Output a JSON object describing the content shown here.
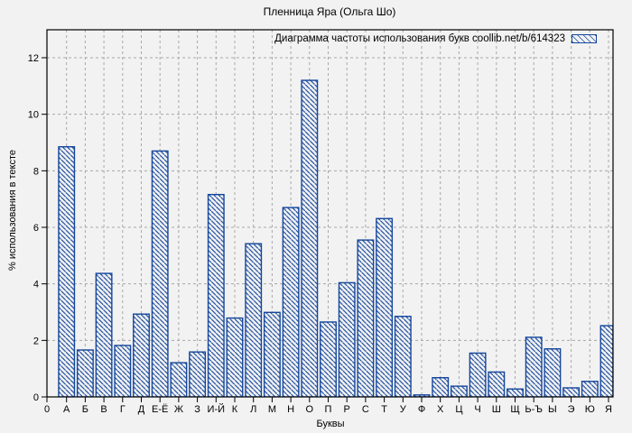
{
  "colors": {
    "background": "#f2f2f2",
    "bar": "#14469c",
    "grid": "#a8a8a8",
    "frame": "#000000",
    "text": "#000000"
  },
  "chart_data": {
    "type": "bar",
    "title": "Пленница Яра (Ольга Шо)",
    "legend": "Диаграмма частоты использования букв coollib.net/b/614323",
    "legend_position": "top-right",
    "xlabel": "Буквы",
    "ylabel": "% использования в тексте",
    "ylim": [
      0,
      13
    ],
    "yticks": [
      0,
      2,
      4,
      6,
      8,
      10,
      12
    ],
    "x_origin_label": "0",
    "grid": true,
    "bar_style": "blue outline with backslash diagonal hatch",
    "categories": [
      "А",
      "Б",
      "В",
      "Г",
      "Д",
      "Е-Ё",
      "Ж",
      "З",
      "И-Й",
      "К",
      "Л",
      "М",
      "Н",
      "О",
      "П",
      "Р",
      "С",
      "Т",
      "У",
      "Ф",
      "Х",
      "Ц",
      "Ч",
      "Ш",
      "Щ",
      "Ь-Ъ",
      "Ы",
      "Э",
      "Ю",
      "Я"
    ],
    "values": [
      8.85,
      1.66,
      4.37,
      1.82,
      2.93,
      8.7,
      1.21,
      1.59,
      7.16,
      2.79,
      5.42,
      2.99,
      6.7,
      11.2,
      2.65,
      4.04,
      5.55,
      6.31,
      2.85,
      0.07,
      0.68,
      0.38,
      1.55,
      0.88,
      0.28,
      2.11,
      1.7,
      0.32,
      0.55,
      2.52
    ]
  }
}
